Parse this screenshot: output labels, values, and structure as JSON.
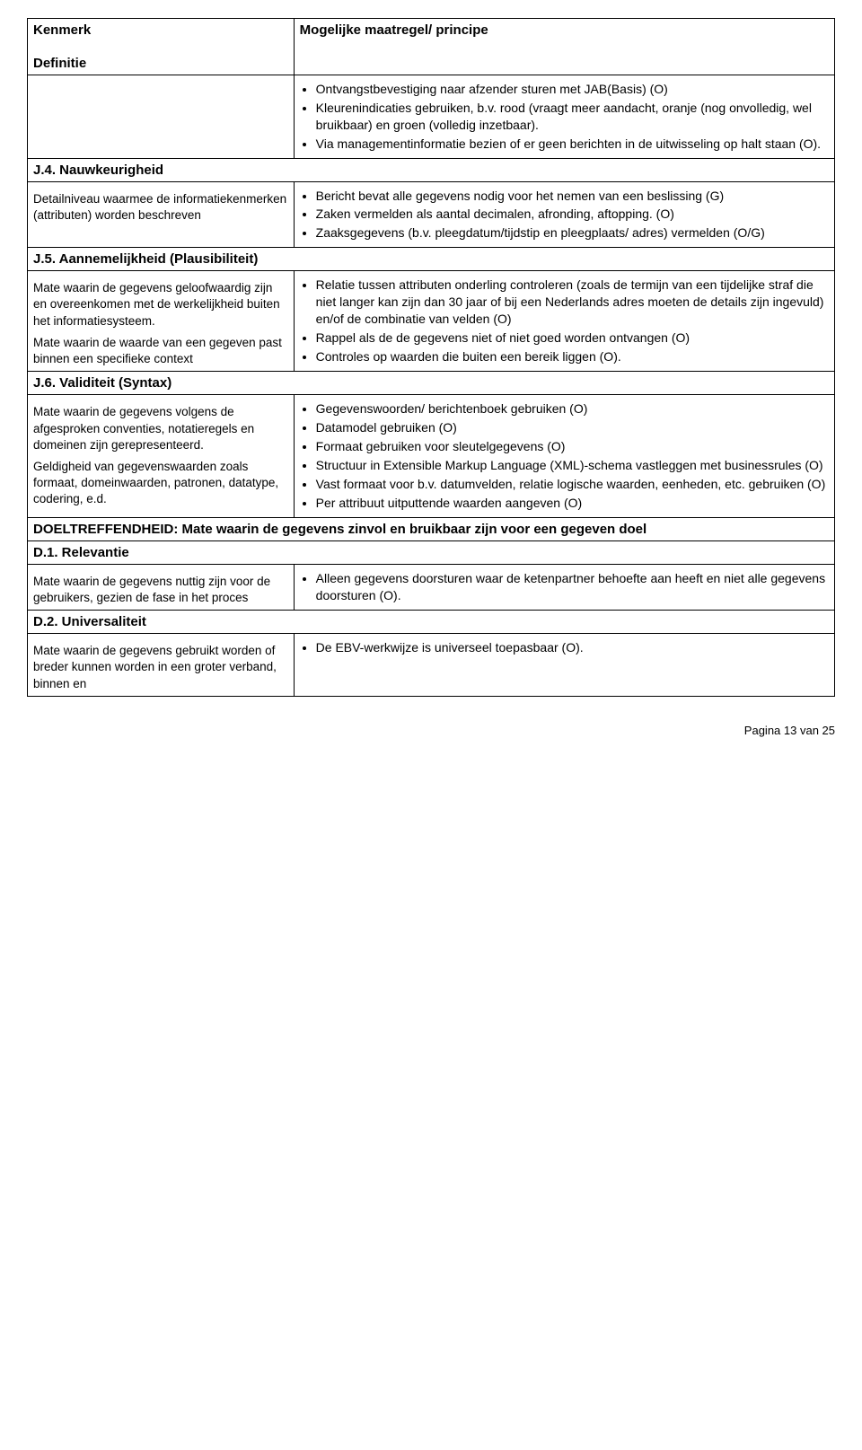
{
  "header": {
    "left_title": "Kenmerk",
    "left_sub": "Definitie",
    "right_title": "Mogelijke maatregel/ principe"
  },
  "row_intro": {
    "bullets": [
      "Ontvangstbevestiging naar afzender sturen met JAB(Basis) (O)",
      "Kleurenindicaties gebruiken, b.v. rood (vraagt meer aandacht, oranje (nog onvolledig, wel bruikbaar) en groen (volledig inzetbaar).",
      "Via managementinformatie bezien of er geen berichten in de uitwisseling op halt staan (O)."
    ]
  },
  "j4": {
    "title": "J.4. Nauwkeurigheid",
    "definition": "Detailniveau waarmee de informatiekenmerken (attributen) worden beschreven",
    "bullets": [
      "Bericht bevat alle gegevens nodig voor het nemen van een beslissing (G)",
      "Zaken vermelden als aantal decimalen, afronding, aftopping. (O)",
      "Zaaksgegevens (b.v. pleegdatum/tijdstip en pleegplaats/ adres) vermelden (O/G)"
    ]
  },
  "j5": {
    "title": "J.5. Aannemelijkheid (Plausibiliteit)",
    "definition1": "Mate waarin de gegevens geloofwaardig zijn en overeenkomen met de werkelijkheid buiten het informatiesysteem.",
    "definition2": "Mate waarin de waarde van een gegeven past binnen een specifieke context",
    "bullets": [
      "Relatie tussen attributen onderling controleren (zoals de termijn van een tijdelijke straf die niet langer kan zijn dan 30 jaar of bij een Nederlands adres moeten de details zijn ingevuld) en/of de combinatie van velden (O)",
      "Rappel als de de gegevens niet of niet goed worden ontvangen (O)",
      "Controles op waarden die buiten een bereik liggen (O)."
    ]
  },
  "j6": {
    "title": "J.6. Validiteit (Syntax)",
    "definition1": "Mate waarin de gegevens volgens de afgesproken conventies, notatieregels en domeinen zijn gerepresenteerd.",
    "definition2": "Geldigheid van gegevenswaarden zoals formaat, domeinwaarden, patronen, datatype, codering, e.d.",
    "bullets": [
      "Gegevenswoorden/ berichtenboek gebruiken (O)",
      "Datamodel gebruiken (O)",
      "Formaat gebruiken voor sleutelgegevens (O)",
      "Structuur in Extensible Markup Language (XML)-schema vastleggen met businessrules (O)",
      "Vast formaat voor b.v. datumvelden, relatie logische waarden, eenheden, etc. gebruiken (O)",
      "Per attribuut uitputtende waarden aangeven (O)"
    ]
  },
  "doel": {
    "title": "DOELTREFFENDHEID: Mate waarin de gegevens zinvol en bruikbaar zijn voor een gegeven doel"
  },
  "d1": {
    "title": "D.1. Relevantie",
    "definition": "Mate waarin de gegevens nuttig zijn voor de gebruikers, gezien de fase in het proces",
    "bullets": [
      "Alleen gegevens doorsturen waar de ketenpartner behoefte aan heeft en niet alle gegevens doorsturen (O)."
    ]
  },
  "d2": {
    "title": "D.2. Universaliteit",
    "definition": "Mate waarin de gegevens gebruikt worden of breder kunnen worden in een groter verband, binnen en",
    "bullets": [
      "De EBV-werkwijze is universeel toepasbaar (O)."
    ]
  },
  "footer": "Pagina 13 van 25"
}
